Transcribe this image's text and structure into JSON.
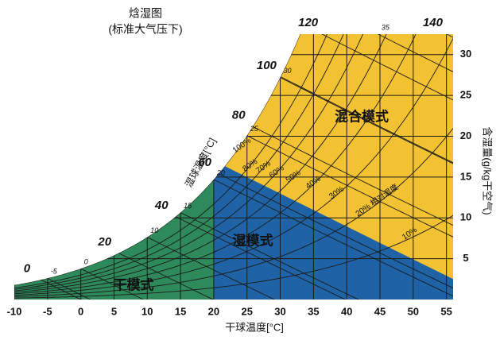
{
  "chart_data": {
    "type": "psychrometric",
    "title": "焓湿图",
    "subtitle": "(标准大气压下)",
    "x_label": "干球温度[°C]",
    "y_label": "含湿量(g/kg干空气)",
    "wetbulb_label": "湿球温度[°C]",
    "xlim": [
      -10,
      56
    ],
    "ylim": [
      0,
      32.5
    ],
    "xticks": [
      -10,
      -5,
      0,
      5,
      10,
      15,
      20,
      25,
      30,
      35,
      40,
      45,
      50,
      55
    ],
    "yticks": [
      5,
      10,
      15,
      20,
      25,
      30
    ],
    "enthalpy": [
      0,
      20,
      40,
      60,
      80,
      100,
      120,
      140
    ],
    "wetbulb": [
      -5,
      0,
      10,
      15,
      20,
      25,
      30,
      35
    ],
    "rh": [
      {
        "value": 100,
        "label": "100%"
      },
      {
        "value": 80,
        "label": "80%"
      },
      {
        "value": 70,
        "label": "70%"
      },
      {
        "value": 60,
        "label": "60%"
      },
      {
        "value": 50,
        "label": "50%"
      },
      {
        "value": 40,
        "label": "40%"
      },
      {
        "value": 30,
        "label": "30%"
      },
      {
        "value": 20,
        "label": "20% 相对湿度"
      },
      {
        "value": 10,
        "label": "10%"
      }
    ],
    "regions": [
      {
        "name": "混合模式",
        "color": "#f2c232",
        "points": [
          [
            -10,
            0
          ],
          [
            -10,
            32.5
          ],
          [
            56,
            32.5
          ],
          [
            56,
            0
          ]
        ]
      },
      {
        "name": "湿模式",
        "color": "#1f63a6",
        "points": [
          [
            20,
            0
          ],
          [
            20,
            17
          ],
          [
            56,
            2.5
          ],
          [
            56,
            0
          ]
        ]
      },
      {
        "name": "干模式",
        "color": "#2e8a5a",
        "points": [
          [
            -10,
            0
          ],
          [
            -10,
            32.5
          ],
          [
            20,
            32.5
          ],
          [
            20,
            0
          ]
        ]
      }
    ]
  }
}
